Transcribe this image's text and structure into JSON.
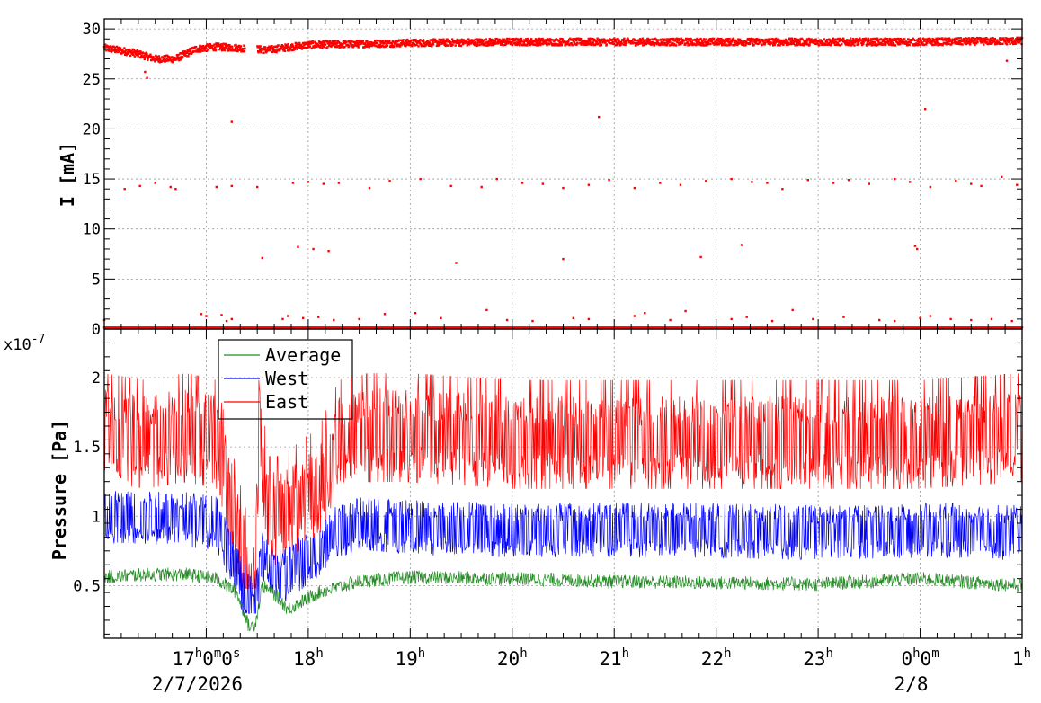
{
  "chart_data": [
    {
      "type": "scatter",
      "ylabel": "I [mA]",
      "ylim": [
        0,
        31
      ],
      "yticks": [
        0,
        5,
        10,
        15,
        20,
        25,
        30
      ],
      "ytick_labels": [
        "0",
        "5",
        "10",
        "15",
        "20",
        "25",
        "30"
      ],
      "grid": true,
      "series": [
        {
          "color": "#ff0000",
          "baseline_profile": [
            [
              0.0,
              28.1
            ],
            [
              0.3,
              27.6
            ],
            [
              0.5,
              27.0
            ],
            [
              0.7,
              27.0
            ],
            [
              0.9,
              28.0
            ],
            [
              1.1,
              28.2
            ],
            [
              1.3,
              28.1
            ],
            [
              1.6,
              27.9
            ],
            [
              2.0,
              28.4
            ],
            [
              2.5,
              28.5
            ],
            [
              3.0,
              28.6
            ],
            [
              4.0,
              28.7
            ],
            [
              5.0,
              28.7
            ],
            [
              6.0,
              28.7
            ],
            [
              7.0,
              28.7
            ],
            [
              8.0,
              28.7
            ],
            [
              9.0,
              28.8
            ]
          ],
          "gaps": [
            [
              1.38,
              1.5
            ]
          ],
          "outliers_15": [
            [
              0.2,
              14.0
            ],
            [
              0.35,
              14.3
            ],
            [
              0.5,
              14.6
            ],
            [
              0.7,
              14.0
            ],
            [
              1.1,
              14.2
            ],
            [
              1.25,
              14.3
            ],
            [
              1.5,
              14.2
            ],
            [
              1.85,
              14.6
            ],
            [
              2.0,
              14.7
            ],
            [
              2.15,
              14.5
            ],
            [
              2.3,
              14.6
            ],
            [
              2.6,
              14.1
            ],
            [
              2.8,
              14.8
            ],
            [
              3.1,
              15.0
            ],
            [
              3.4,
              14.3
            ],
            [
              3.7,
              14.2
            ],
            [
              3.85,
              15.0
            ],
            [
              4.1,
              14.6
            ],
            [
              4.3,
              14.5
            ],
            [
              4.5,
              14.1
            ],
            [
              4.75,
              14.4
            ],
            [
              4.95,
              14.9
            ],
            [
              5.2,
              14.1
            ],
            [
              5.45,
              14.6
            ],
            [
              5.65,
              14.4
            ],
            [
              5.9,
              14.8
            ],
            [
              6.15,
              15.0
            ],
            [
              6.35,
              14.7
            ],
            [
              6.5,
              14.6
            ],
            [
              6.65,
              14.0
            ],
            [
              6.9,
              14.9
            ],
            [
              7.15,
              14.6
            ],
            [
              7.3,
              14.9
            ],
            [
              7.5,
              14.5
            ],
            [
              7.75,
              15.0
            ],
            [
              7.9,
              14.7
            ],
            [
              8.1,
              14.2
            ],
            [
              8.35,
              14.8
            ],
            [
              8.5,
              14.5
            ],
            [
              8.6,
              14.3
            ],
            [
              8.8,
              15.2
            ],
            [
              8.95,
              14.4
            ]
          ],
          "outliers_mid": [
            [
              0.65,
              14.2
            ],
            [
              1.25,
              20.7
            ],
            [
              1.55,
              7.1
            ],
            [
              1.9,
              8.2
            ],
            [
              2.05,
              8.0
            ],
            [
              2.2,
              7.8
            ],
            [
              3.45,
              6.6
            ],
            [
              4.5,
              7.0
            ],
            [
              4.85,
              21.2
            ],
            [
              5.85,
              7.2
            ],
            [
              6.25,
              8.4
            ],
            [
              7.95,
              8.3
            ],
            [
              7.97,
              8.0
            ],
            [
              8.05,
              22.0
            ],
            [
              8.85,
              26.8
            ],
            [
              0.4,
              25.7
            ],
            [
              0.42,
              25.1
            ]
          ],
          "near_zero": [
            [
              0.0,
              0.9
            ],
            [
              0.95,
              1.5
            ],
            [
              1.0,
              1.3
            ],
            [
              1.15,
              1.4
            ],
            [
              1.2,
              0.8
            ],
            [
              1.25,
              1.0
            ],
            [
              1.75,
              1.0
            ],
            [
              1.8,
              1.3
            ],
            [
              1.95,
              1.1
            ],
            [
              2.1,
              1.2
            ],
            [
              2.25,
              0.9
            ],
            [
              2.5,
              1.0
            ],
            [
              2.75,
              1.5
            ],
            [
              3.05,
              1.6
            ],
            [
              3.3,
              1.1
            ],
            [
              3.75,
              1.9
            ],
            [
              3.95,
              0.9
            ],
            [
              4.2,
              0.8
            ],
            [
              4.6,
              1.1
            ],
            [
              4.75,
              1.0
            ],
            [
              5.2,
              1.3
            ],
            [
              5.3,
              1.6
            ],
            [
              5.55,
              0.9
            ],
            [
              5.7,
              1.8
            ],
            [
              6.15,
              1.0
            ],
            [
              6.3,
              1.2
            ],
            [
              6.55,
              0.8
            ],
            [
              6.75,
              1.9
            ],
            [
              6.95,
              1.0
            ],
            [
              7.25,
              1.2
            ],
            [
              7.6,
              0.9
            ],
            [
              7.75,
              0.8
            ],
            [
              8.0,
              1.1
            ],
            [
              8.1,
              1.3
            ],
            [
              8.3,
              1.0
            ],
            [
              8.5,
              0.9
            ],
            [
              8.7,
              1.0
            ],
            [
              8.9,
              0.8
            ]
          ]
        }
      ]
    },
    {
      "type": "line",
      "ylabel": "Pressure [Pa]",
      "yexponent_label": "x10",
      "yexponent_value": "-7",
      "ylim": [
        0.12,
        2.35
      ],
      "yticks": [
        0.5,
        1,
        1.5,
        2
      ],
      "ytick_labels": [
        "0.5",
        "1",
        "1.5",
        "2"
      ],
      "grid": true,
      "legend": {
        "position": "top-left"
      },
      "series": [
        {
          "name": "Average",
          "color": "#228b22",
          "profile": [
            [
              0.0,
              0.56
            ],
            [
              0.4,
              0.58
            ],
            [
              0.8,
              0.58
            ],
            [
              1.1,
              0.55
            ],
            [
              1.3,
              0.45
            ],
            [
              1.42,
              0.2
            ],
            [
              1.48,
              0.22
            ],
            [
              1.55,
              0.5
            ],
            [
              1.7,
              0.42
            ],
            [
              1.8,
              0.33
            ],
            [
              2.1,
              0.45
            ],
            [
              2.5,
              0.53
            ],
            [
              3.0,
              0.56
            ],
            [
              4.0,
              0.55
            ],
            [
              5.0,
              0.53
            ],
            [
              6.0,
              0.52
            ],
            [
              7.0,
              0.51
            ],
            [
              8.0,
              0.55
            ],
            [
              9.0,
              0.5
            ]
          ],
          "amp": 0.05,
          "min": 0.17
        },
        {
          "name": "West",
          "color": "#0000ff",
          "profile": [
            [
              0.0,
              1.0
            ],
            [
              0.4,
              1.0
            ],
            [
              0.8,
              0.98
            ],
            [
              1.1,
              0.95
            ],
            [
              1.3,
              0.6
            ],
            [
              1.42,
              0.38
            ],
            [
              1.48,
              0.35
            ],
            [
              1.55,
              0.7
            ],
            [
              1.65,
              0.62
            ],
            [
              1.75,
              0.55
            ],
            [
              1.9,
              0.65
            ],
            [
              2.1,
              0.75
            ],
            [
              2.3,
              0.9
            ],
            [
              2.6,
              0.95
            ],
            [
              3.0,
              0.92
            ],
            [
              4.0,
              0.9
            ],
            [
              5.0,
              0.9
            ],
            [
              6.0,
              0.9
            ],
            [
              7.0,
              0.88
            ],
            [
              8.0,
              0.9
            ],
            [
              9.0,
              0.88
            ]
          ],
          "amp": 0.2,
          "min": 0.3
        },
        {
          "name": "East",
          "color": "#ff0000",
          "profile": [
            [
              0.0,
              1.6
            ],
            [
              0.4,
              1.55
            ],
            [
              0.8,
              1.6
            ],
            [
              1.1,
              1.55
            ],
            [
              1.3,
              0.9
            ],
            [
              1.42,
              0.52
            ],
            [
              1.48,
              0.5
            ],
            [
              1.52,
              1.7
            ],
            [
              1.6,
              1.0
            ],
            [
              1.75,
              1.0
            ],
            [
              1.9,
              1.1
            ],
            [
              2.1,
              1.2
            ],
            [
              2.3,
              1.55
            ],
            [
              2.6,
              1.6
            ],
            [
              3.0,
              1.6
            ],
            [
              4.0,
              1.55
            ],
            [
              5.0,
              1.55
            ],
            [
              6.0,
              1.55
            ],
            [
              7.0,
              1.55
            ],
            [
              8.0,
              1.55
            ],
            [
              9.0,
              1.6
            ]
          ],
          "amp": 0.32,
          "min": 0.48
        }
      ]
    }
  ],
  "x_axis": {
    "range_hours": [
      0,
      9
    ],
    "major_tick_labels": [
      {
        "h": 1,
        "main": "17",
        "sup1": "h",
        "mid": "0",
        "sup2": "m",
        "end": "0",
        "sup3": "s"
      },
      {
        "h": 2,
        "main": "18",
        "sup1": "h"
      },
      {
        "h": 3,
        "main": "19",
        "sup1": "h"
      },
      {
        "h": 4,
        "main": "20",
        "sup1": "h"
      },
      {
        "h": 5,
        "main": "21",
        "sup1": "h"
      },
      {
        "h": 6,
        "main": "22",
        "sup1": "h"
      },
      {
        "h": 7,
        "main": "23",
        "sup1": "h"
      },
      {
        "h": 8,
        "main": "0",
        "sup1": "h",
        "mid": "0",
        "sup2": "m"
      },
      {
        "h": 9,
        "main": "1",
        "sup1": "h"
      }
    ],
    "date_labels": [
      {
        "h": 1,
        "text": "2/7/2026"
      },
      {
        "h": 8,
        "text": "2/8"
      }
    ]
  }
}
